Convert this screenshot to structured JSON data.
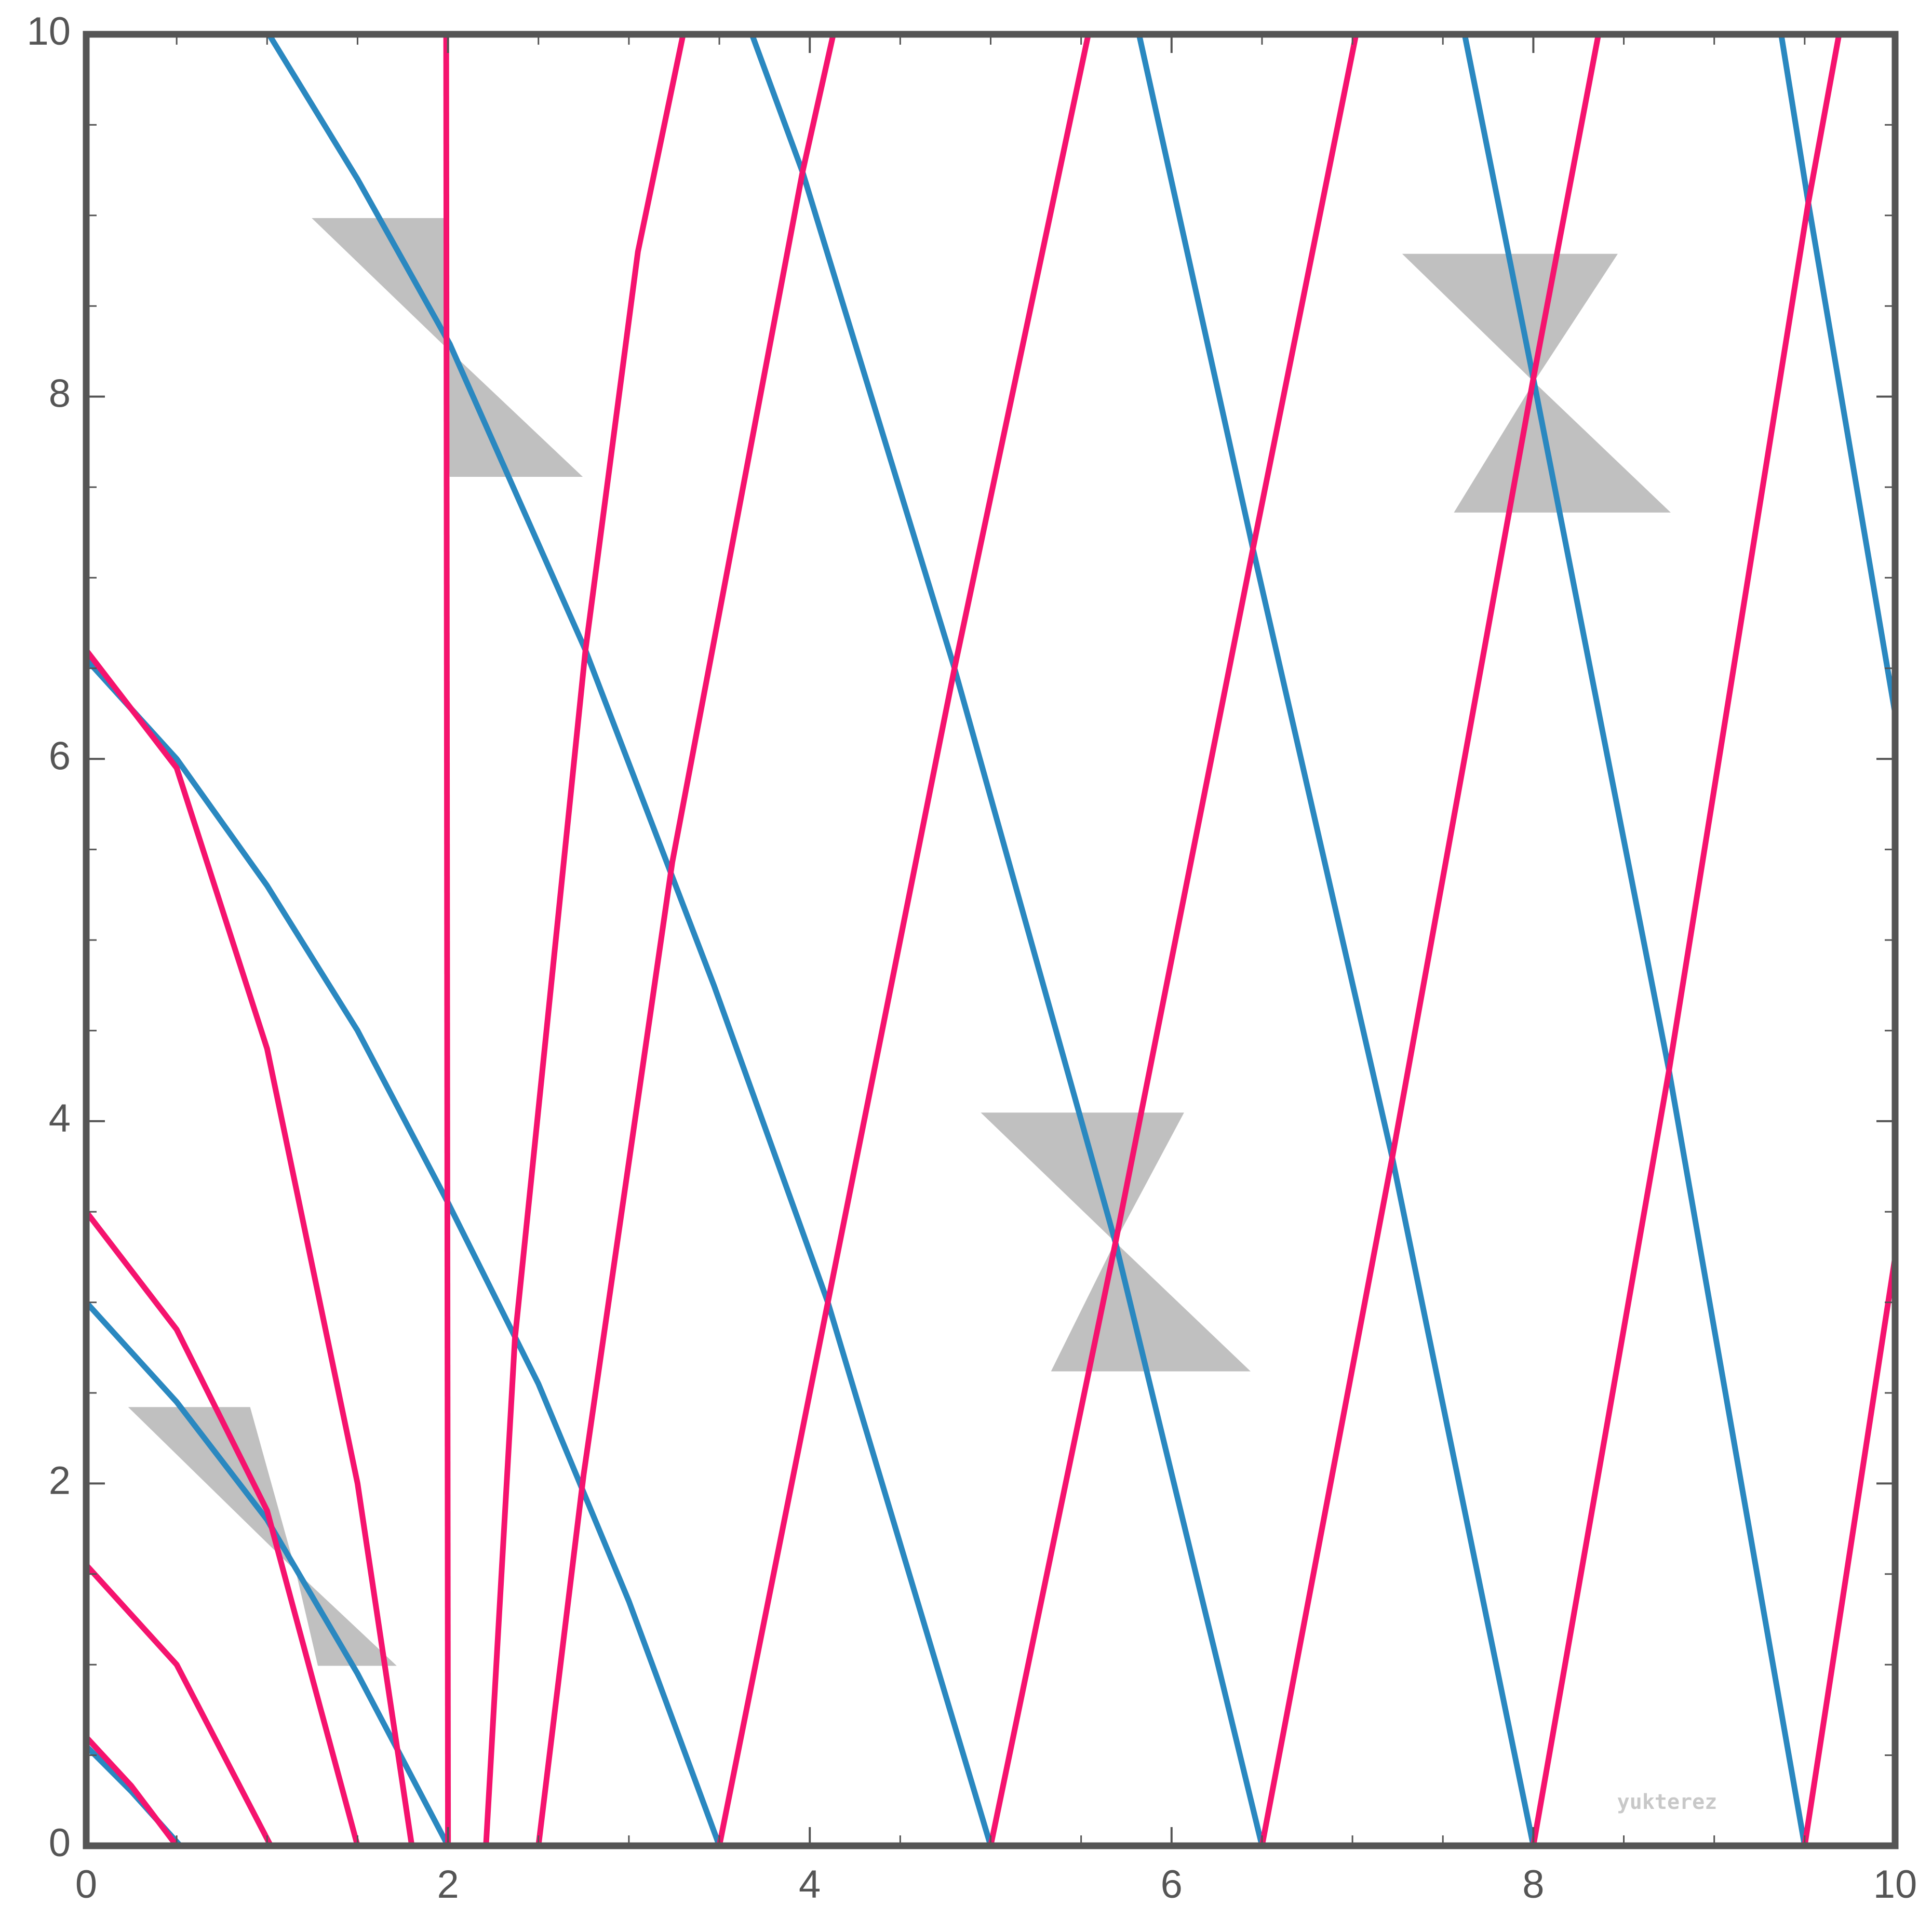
{
  "chart_data": {
    "type": "line",
    "watermark": "yukterez",
    "xlim": [
      0,
      10
    ],
    "ylim": [
      0,
      10
    ],
    "xticks": [
      0,
      2,
      4,
      6,
      8,
      10
    ],
    "yticks": [
      0,
      2,
      4,
      6,
      8,
      10
    ],
    "xminorticks": [
      0.5,
      1,
      1.5,
      2.5,
      3,
      3.5,
      4.5,
      5,
      5.5,
      6.5,
      7,
      7.5,
      8.5,
      9,
      9.5
    ],
    "yminorticks": [
      0.5,
      1,
      1.5,
      2.5,
      3,
      3.5,
      4.5,
      5,
      5.5,
      6.5,
      7,
      7.5,
      8.5,
      9,
      9.5
    ],
    "series": [
      {
        "color": "#2a88c0",
        "x": [
          0,
          0.25,
          0.52
        ],
        "values": [
          0.55,
          0.3,
          0
        ]
      },
      {
        "color": "#2a88c0",
        "x": [
          0,
          0.5,
          1,
          1.5,
          2
        ],
        "values": [
          3.0,
          2.45,
          1.8,
          0.95,
          0
        ]
      },
      {
        "color": "#2a88c0",
        "x": [
          0,
          0.5,
          1,
          1.5,
          2,
          2.5,
          3,
          3.5
        ],
        "values": [
          6.55,
          6.0,
          5.3,
          4.5,
          3.55,
          2.55,
          1.35,
          0
        ]
      },
      {
        "color": "#2a88c0",
        "x": [
          1.01,
          1.5,
          2.01,
          2.76,
          3.47,
          4.1,
          5.0
        ],
        "values": [
          10,
          9.2,
          8.29,
          6.6,
          4.75,
          3.0,
          0
        ]
      },
      {
        "color": "#2a88c0",
        "x": [
          3.68,
          3.96,
          4.8,
          5.69,
          6.5
        ],
        "values": [
          10,
          9.24,
          6.5,
          3.33,
          0
        ]
      },
      {
        "color": "#2a88c0",
        "x": [
          5.82,
          6.45,
          7.22,
          8.0
        ],
        "values": [
          10,
          7.16,
          3.8,
          0
        ]
      },
      {
        "color": "#2a88c0",
        "x": [
          7.62,
          8.0,
          8.75,
          9.5
        ],
        "values": [
          10,
          8.1,
          4.28,
          0
        ]
      },
      {
        "color": "#2a88c0",
        "x": [
          9.37,
          9.52,
          10
        ],
        "values": [
          10,
          9.07,
          6.25
        ]
      },
      {
        "color": "#f5136e",
        "x": [
          0,
          0.25,
          0.5
        ],
        "values": [
          0.6,
          0.33,
          0
        ]
      },
      {
        "color": "#f5136e",
        "x": [
          0,
          0.5,
          1.02
        ],
        "values": [
          1.55,
          1.0,
          0
        ]
      },
      {
        "color": "#f5136e",
        "x": [
          0,
          0.5,
          1.0,
          1.5
        ],
        "values": [
          3.5,
          2.85,
          1.85,
          0
        ]
      },
      {
        "color": "#f5136e",
        "x": [
          0,
          0.5,
          1.0,
          1.5,
          1.8
        ],
        "values": [
          6.6,
          5.95,
          4.4,
          2.0,
          0
        ]
      },
      {
        "color": "#f5136e",
        "x": [
          1.99,
          2.0
        ],
        "values": [
          10,
          0
        ]
      },
      {
        "color": "#f5136e",
        "x": [
          2.21,
          2.37,
          2.76,
          3.05,
          3.3
        ],
        "values": [
          0,
          2.8,
          6.6,
          8.8,
          10
        ]
      },
      {
        "color": "#f5136e",
        "x": [
          2.5,
          2.75,
          3.24,
          3.96,
          4.13
        ],
        "values": [
          0,
          2.05,
          5.43,
          9.24,
          10
        ]
      },
      {
        "color": "#f5136e",
        "x": [
          3.5,
          4.1,
          4.8,
          5.54
        ],
        "values": [
          0,
          3.0,
          6.5,
          10
        ]
      },
      {
        "color": "#f5136e",
        "x": [
          5.0,
          5.69,
          6.45,
          7.02
        ],
        "values": [
          0,
          3.33,
          7.16,
          10
        ]
      },
      {
        "color": "#f5136e",
        "x": [
          6.5,
          7.22,
          8.0,
          8.36
        ],
        "values": [
          0,
          3.8,
          8.1,
          10
        ]
      },
      {
        "color": "#f5136e",
        "x": [
          8.0,
          8.75,
          9.52,
          9.69
        ],
        "values": [
          0,
          4.28,
          9.07,
          10
        ]
      },
      {
        "color": "#f5136e",
        "x": [
          9.5,
          10
        ],
        "values": [
          0,
          3.25
        ]
      }
    ]
  }
}
